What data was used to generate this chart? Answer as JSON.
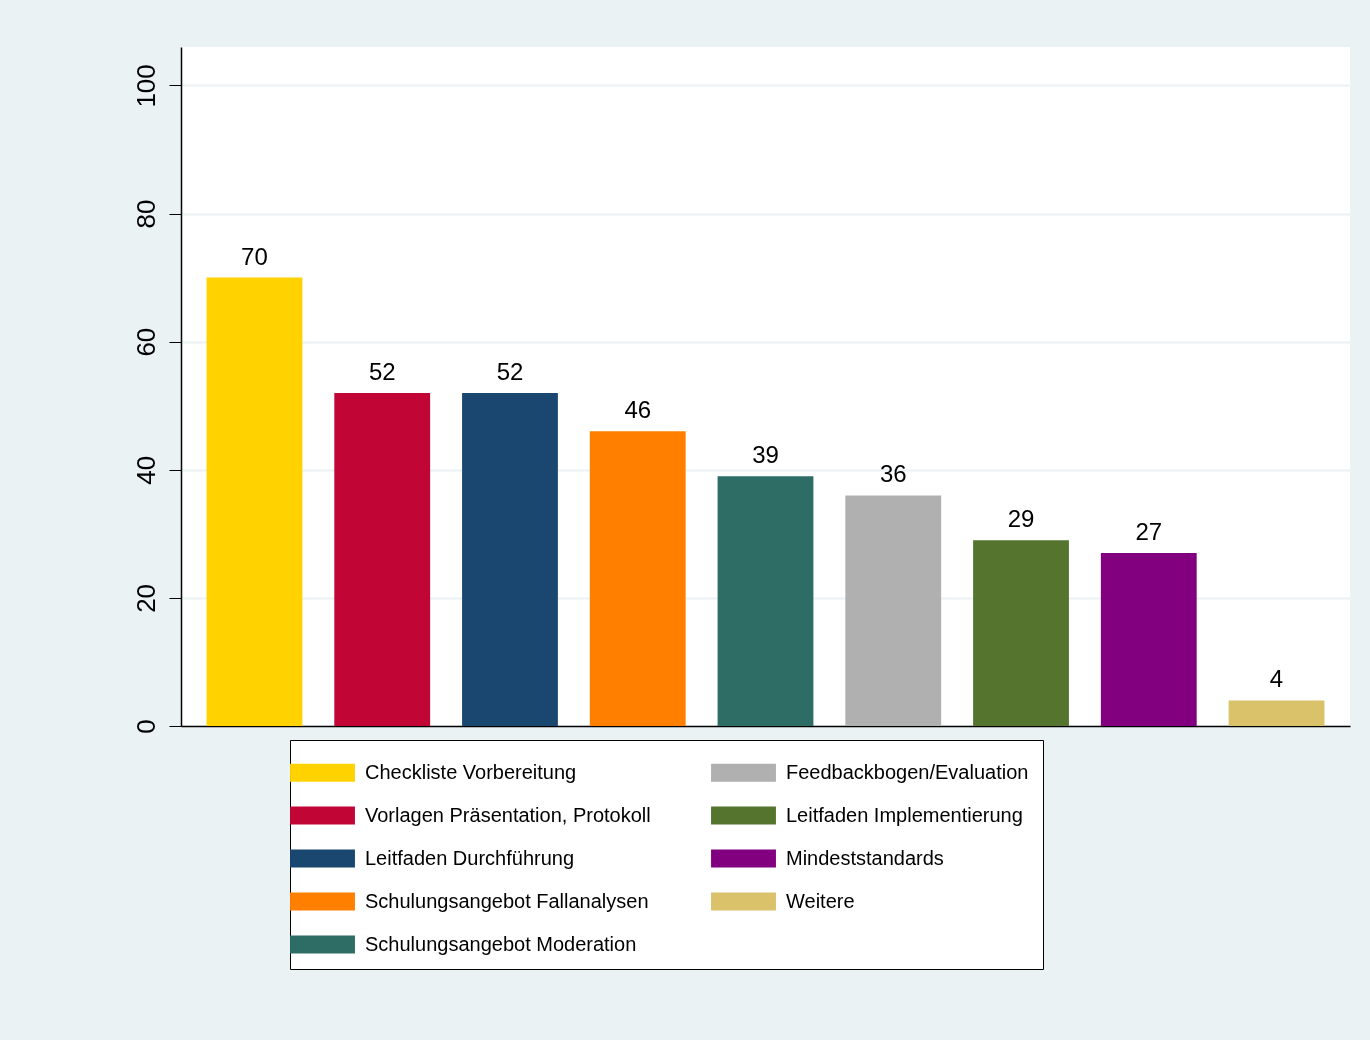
{
  "chart_data": {
    "type": "bar",
    "categories": [
      null
    ],
    "series": [
      {
        "name": "Checkliste Vorbereitung",
        "color": "#ffd200",
        "values": [
          70
        ]
      },
      {
        "name": "Vorlagen Präsentation, Protokoll",
        "color": "#c10534",
        "values": [
          52
        ]
      },
      {
        "name": "Leitfaden Durchführung",
        "color": "#1a476f",
        "values": [
          52
        ]
      },
      {
        "name": "Schulungsangebot Fallanalysen",
        "color": "#ff7f00",
        "values": [
          46
        ]
      },
      {
        "name": "Schulungsangebot Moderation",
        "color": "#2d6d66",
        "values": [
          39
        ]
      },
      {
        "name": "Feedbackbogen/Evaluation",
        "color": "#b0b0b0",
        "values": [
          36
        ]
      },
      {
        "name": "Leitfaden Implementierung",
        "color": "#55752f",
        "values": [
          29
        ]
      },
      {
        "name": "Mindeststandards",
        "color": "#820080",
        "values": [
          27
        ]
      },
      {
        "name": "Weitere",
        "color": "#d9c26a",
        "values": [
          4
        ]
      }
    ],
    "ylim": [
      0,
      106
    ],
    "yticks": [
      0,
      20,
      40,
      60,
      80,
      100
    ],
    "grid": "y",
    "data_labels": true,
    "legend": "bottom",
    "tick_labels": "y"
  }
}
